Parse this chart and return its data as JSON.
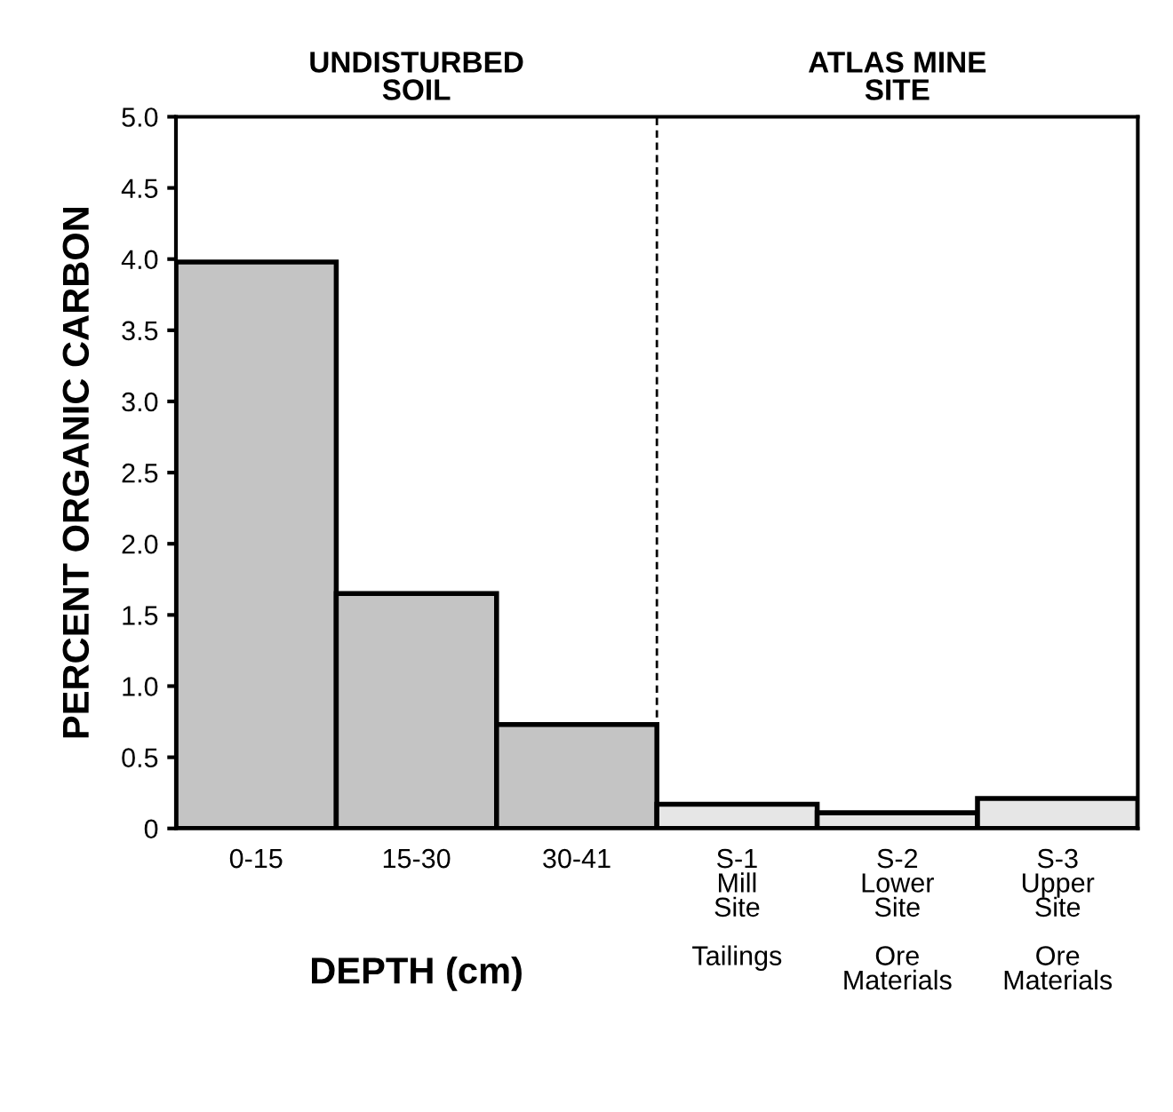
{
  "chart_data": {
    "type": "bar",
    "ylabel": "PERCENT ORGANIC CARBON",
    "xlabel": "DEPTH (cm)",
    "categories": [
      "0-15",
      "15-30",
      "30-41",
      "S-1\nMill\nSite\n\nTailings",
      "S-2\nLower\nSite\n\nOre\nMaterials",
      "S-3\nUpper\nSite\n\nOre\nMaterials"
    ],
    "values": [
      3.98,
      1.65,
      0.73,
      0.17,
      0.11,
      0.21
    ],
    "colors": [
      "#c4c4c4",
      "#c4c4c4",
      "#c4c4c4",
      "#e6e6e6",
      "#e6e6e6",
      "#e6e6e6"
    ],
    "ylim": [
      0,
      5.0
    ],
    "yticks": [
      0,
      0.5,
      {
        "value": 1,
        "label": "1.0"
      },
      1.5,
      {
        "value": 2,
        "label": "2.0"
      },
      2.5,
      {
        "value": 3,
        "label": "3.0"
      },
      3.5,
      {
        "value": 4,
        "label": "4.0"
      },
      4.5,
      {
        "value": 5,
        "label": "5.0"
      }
    ],
    "annotations": [
      "UNDISTURBED\nSOIL",
      "ATLAS MINE\nSITE"
    ],
    "grid": false,
    "legend": false
  }
}
